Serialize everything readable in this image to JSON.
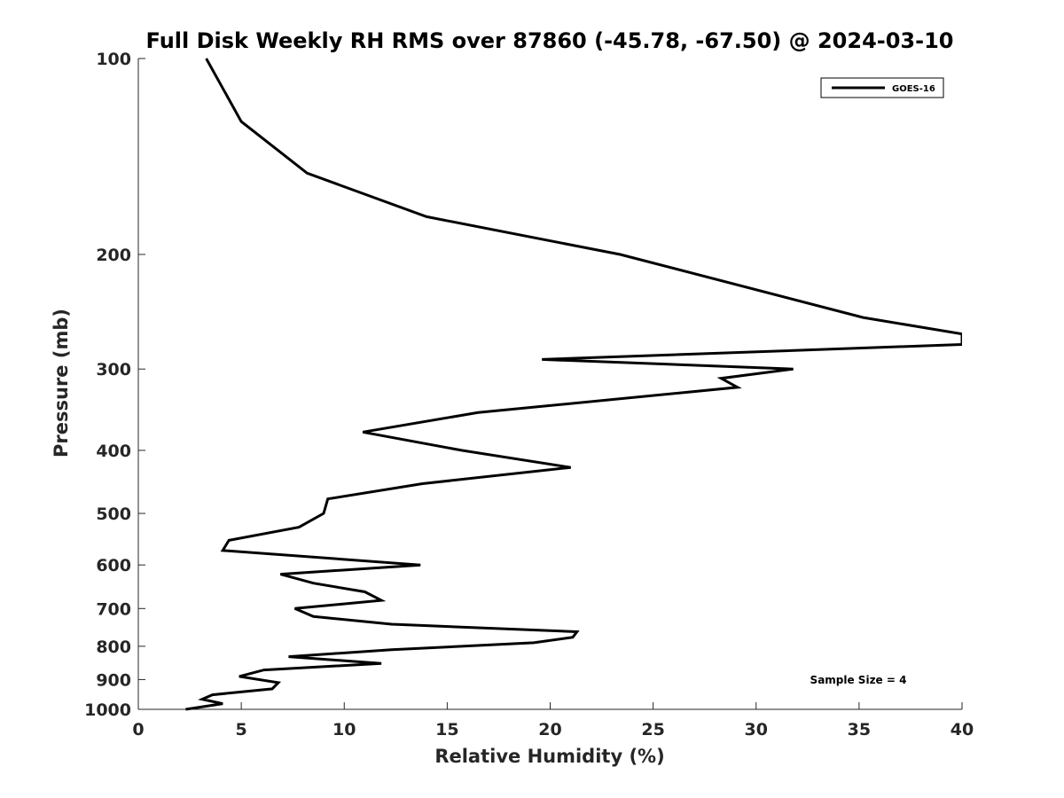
{
  "chart_data": {
    "type": "line",
    "title": "Full Disk Weekly RH RMS over 87860 (-45.78, -67.50) @ 2024-03-10",
    "xlabel": "Relative Humidity (%)",
    "ylabel": "Pressure (mb)",
    "xlim": [
      0,
      40
    ],
    "ylim": [
      100,
      1000
    ],
    "y_scale": "log",
    "y_reversed": true,
    "grid": false,
    "legend_position": "top-right",
    "x_ticks": [
      "0",
      "5",
      "10",
      "15",
      "20",
      "25",
      "30",
      "35",
      "40"
    ],
    "y_ticks": [
      "100",
      "200",
      "300",
      "400",
      "500",
      "600",
      "700",
      "800",
      "900",
      "1000"
    ],
    "annotation": "Sample Size = 4",
    "series": [
      {
        "name": "GOES-16",
        "color": "#000000",
        "points": [
          [
            3.3,
            100
          ],
          [
            5.0,
            125
          ],
          [
            8.2,
            150
          ],
          [
            14.0,
            175
          ],
          [
            23.4,
            200
          ],
          [
            35.2,
            250
          ],
          [
            40.0,
            265
          ],
          [
            40.0,
            275
          ],
          [
            19.6,
            290
          ],
          [
            31.8,
            300
          ],
          [
            28.3,
            310
          ],
          [
            29.1,
            320
          ],
          [
            16.5,
            350
          ],
          [
            10.9,
            375
          ],
          [
            15.7,
            400
          ],
          [
            21.0,
            425
          ],
          [
            13.8,
            450
          ],
          [
            9.2,
            475
          ],
          [
            9.0,
            500
          ],
          [
            7.8,
            525
          ],
          [
            4.4,
            550
          ],
          [
            4.1,
            570
          ],
          [
            13.7,
            600
          ],
          [
            6.9,
            620
          ],
          [
            8.5,
            640
          ],
          [
            11.0,
            660
          ],
          [
            11.8,
            680
          ],
          [
            7.6,
            700
          ],
          [
            8.5,
            720
          ],
          [
            12.3,
            740
          ],
          [
            21.3,
            760
          ],
          [
            21.1,
            775
          ],
          [
            19.2,
            790
          ],
          [
            12.3,
            810
          ],
          [
            7.3,
            830
          ],
          [
            11.8,
            850
          ],
          [
            6.1,
            870
          ],
          [
            4.9,
            890
          ],
          [
            6.8,
            910
          ],
          [
            6.5,
            930
          ],
          [
            3.6,
            950
          ],
          [
            3.1,
            965
          ],
          [
            4.1,
            980
          ],
          [
            2.3,
            1000
          ]
        ]
      }
    ]
  }
}
